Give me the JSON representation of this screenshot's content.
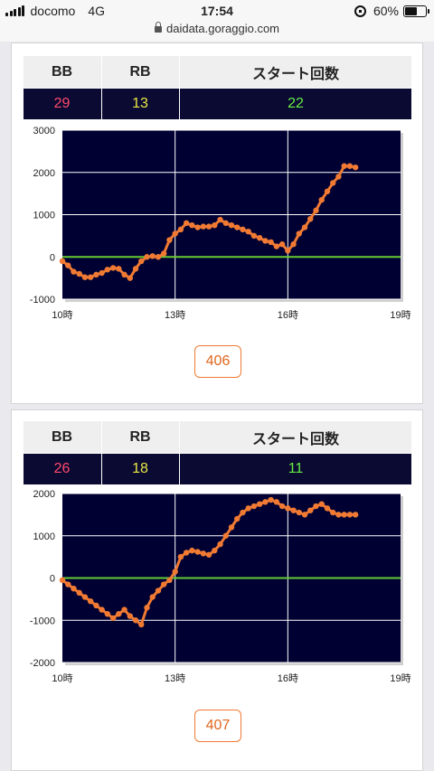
{
  "status": {
    "carrier": "docomo",
    "network": "4G",
    "time": "17:54",
    "battery": "60%",
    "battery_level": 0.6
  },
  "browser": {
    "url": "daidata.goraggio.com"
  },
  "colors": {
    "plot_bg": "#000033",
    "line": "#f07a33",
    "zero_line": "#66cc33",
    "grid": "#ffffff",
    "bb": "#ff4a6a",
    "rb": "#e8e844",
    "start": "#66ee44"
  },
  "machines": [
    {
      "table": {
        "headers": [
          "BB",
          "RB",
          "スタート回数"
        ],
        "values": [
          "29",
          "13",
          "22"
        ]
      },
      "button": "406",
      "chart_data": {
        "type": "line",
        "ylim": [
          -1000,
          3000
        ],
        "yticks": [
          "3000",
          "2000",
          "1000",
          "0",
          "-1000"
        ],
        "ytick_values": [
          3000,
          2000,
          1000,
          0,
          -1000
        ],
        "xlim": [
          10,
          19
        ],
        "xticks": [
          "10時",
          "13時",
          "16時",
          "19時"
        ],
        "xtick_values": [
          10,
          13,
          16,
          19
        ],
        "x": [
          10.0,
          10.15,
          10.3,
          10.45,
          10.6,
          10.75,
          10.9,
          11.05,
          11.2,
          11.35,
          11.5,
          11.65,
          11.8,
          11.95,
          12.1,
          12.25,
          12.4,
          12.55,
          12.7,
          12.85,
          13.0,
          13.15,
          13.3,
          13.45,
          13.6,
          13.75,
          13.9,
          14.05,
          14.2,
          14.35,
          14.5,
          14.65,
          14.8,
          14.95,
          15.1,
          15.25,
          15.4,
          15.55,
          15.7,
          15.85,
          16.0,
          16.15,
          16.3,
          16.45,
          16.6,
          16.75,
          16.9,
          17.05,
          17.2,
          17.35,
          17.5,
          17.65,
          17.8
        ],
        "y": [
          -100,
          -200,
          -350,
          -400,
          -480,
          -480,
          -420,
          -380,
          -300,
          -260,
          -280,
          -420,
          -500,
          -280,
          -100,
          0,
          20,
          0,
          80,
          400,
          550,
          650,
          800,
          750,
          700,
          720,
          720,
          750,
          880,
          800,
          750,
          700,
          650,
          600,
          500,
          450,
          380,
          350,
          250,
          300,
          150,
          300,
          550,
          700,
          900,
          1100,
          1350,
          1550,
          1750,
          1900,
          2150,
          2150,
          2120
        ]
      }
    },
    {
      "table": {
        "headers": [
          "BB",
          "RB",
          "スタート回数"
        ],
        "values": [
          "26",
          "18",
          "11"
        ]
      },
      "button": "407",
      "chart_data": {
        "type": "line",
        "ylim": [
          -2000,
          2000
        ],
        "yticks": [
          "2000",
          "1000",
          "0",
          "-1000",
          "-2000"
        ],
        "ytick_values": [
          2000,
          1000,
          0,
          -1000,
          -2000
        ],
        "xlim": [
          10,
          19
        ],
        "xticks": [
          "10時",
          "13時",
          "16時",
          "19時"
        ],
        "xtick_values": [
          10,
          13,
          16,
          19
        ],
        "x": [
          10.0,
          10.15,
          10.3,
          10.45,
          10.6,
          10.75,
          10.9,
          11.05,
          11.2,
          11.35,
          11.5,
          11.65,
          11.8,
          11.95,
          12.1,
          12.25,
          12.4,
          12.55,
          12.7,
          12.85,
          13.0,
          13.15,
          13.3,
          13.45,
          13.6,
          13.75,
          13.9,
          14.05,
          14.2,
          14.35,
          14.5,
          14.65,
          14.8,
          14.95,
          15.1,
          15.25,
          15.4,
          15.55,
          15.7,
          15.85,
          16.0,
          16.15,
          16.3,
          16.45,
          16.6,
          16.75,
          16.9,
          17.05,
          17.2,
          17.35,
          17.5,
          17.65,
          17.8
        ],
        "y": [
          -50,
          -150,
          -250,
          -350,
          -450,
          -550,
          -650,
          -750,
          -850,
          -950,
          -850,
          -750,
          -900,
          -1000,
          -1100,
          -700,
          -450,
          -300,
          -150,
          -50,
          150,
          500,
          600,
          650,
          620,
          580,
          550,
          650,
          800,
          1000,
          1200,
          1400,
          1550,
          1650,
          1700,
          1750,
          1800,
          1850,
          1800,
          1700,
          1650,
          1600,
          1550,
          1500,
          1600,
          1700,
          1750,
          1650,
          1550,
          1500,
          1500,
          1500,
          1500
        ]
      }
    }
  ]
}
